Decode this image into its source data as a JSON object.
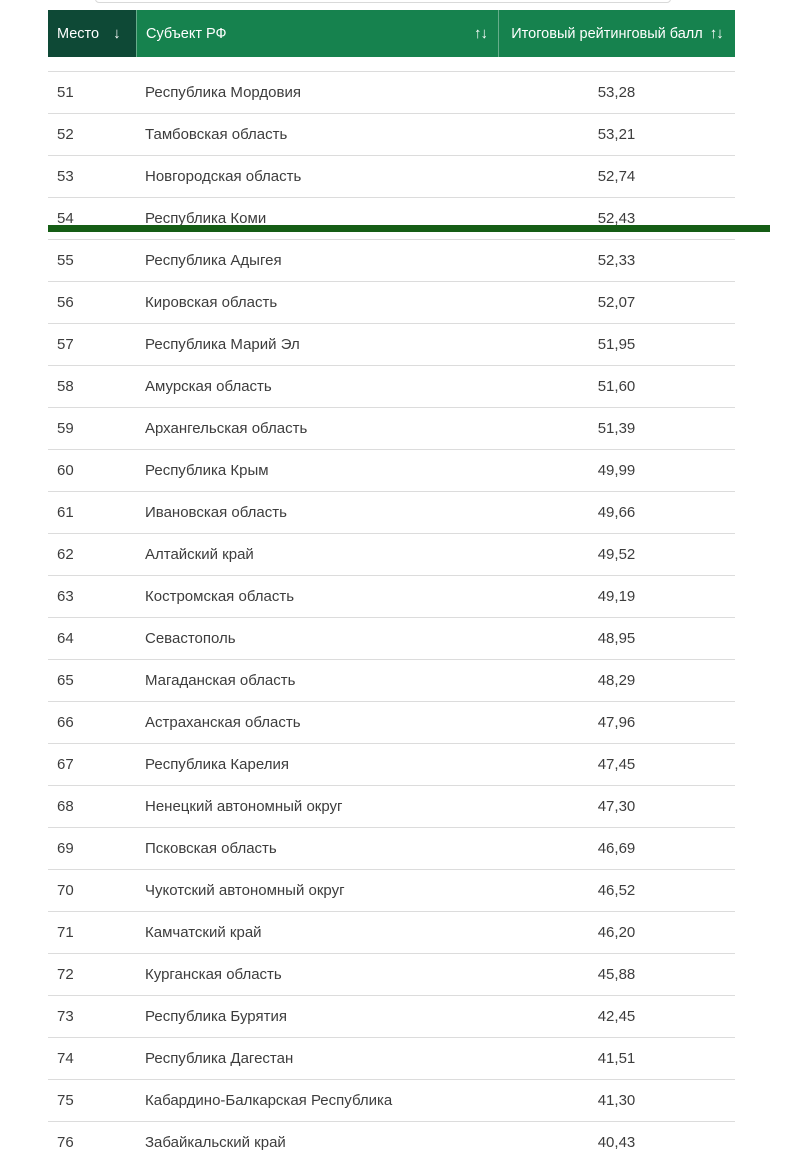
{
  "colors": {
    "header_green": "#16824e",
    "header_dark_green": "#0e4936",
    "divider_green": "#155d15",
    "row_separator": "#dcdcdc",
    "row_text": "#3d3d3d",
    "header_text": "#ffffff"
  },
  "icons": {
    "sort_down": "↓",
    "sort_both": "↑↓"
  },
  "table": {
    "columns": {
      "place": {
        "label": "Место"
      },
      "region": {
        "label": "Субъект РФ"
      },
      "score": {
        "label": "Итоговый рейтинговый балл"
      }
    },
    "divider_after_place": "54",
    "rows": [
      {
        "place": "51",
        "region": "Республика Мордовия",
        "score": "53,28"
      },
      {
        "place": "52",
        "region": "Тамбовская область",
        "score": "53,21"
      },
      {
        "place": "53",
        "region": "Новгородская область",
        "score": "52,74"
      },
      {
        "place": "54",
        "region": "Республика Коми",
        "score": "52,43"
      },
      {
        "place": "55",
        "region": "Республика Адыгея",
        "score": "52,33"
      },
      {
        "place": "56",
        "region": "Кировская область",
        "score": "52,07"
      },
      {
        "place": "57",
        "region": "Республика Марий Эл",
        "score": "51,95"
      },
      {
        "place": "58",
        "region": "Амурская область",
        "score": "51,60"
      },
      {
        "place": "59",
        "region": "Архангельская область",
        "score": "51,39"
      },
      {
        "place": "60",
        "region": "Республика Крым",
        "score": "49,99"
      },
      {
        "place": "61",
        "region": "Ивановская область",
        "score": "49,66"
      },
      {
        "place": "62",
        "region": "Алтайский край",
        "score": "49,52"
      },
      {
        "place": "63",
        "region": "Костромская область",
        "score": "49,19"
      },
      {
        "place": "64",
        "region": "Севастополь",
        "score": "48,95"
      },
      {
        "place": "65",
        "region": "Магаданская область",
        "score": "48,29"
      },
      {
        "place": "66",
        "region": "Астраханская область",
        "score": "47,96"
      },
      {
        "place": "67",
        "region": "Республика Карелия",
        "score": "47,45"
      },
      {
        "place": "68",
        "region": "Ненецкий автономный округ",
        "score": "47,30"
      },
      {
        "place": "69",
        "region": "Псковская область",
        "score": "46,69"
      },
      {
        "place": "70",
        "region": "Чукотский автономный округ",
        "score": "46,52"
      },
      {
        "place": "71",
        "region": "Камчатский край",
        "score": "46,20"
      },
      {
        "place": "72",
        "region": "Курганская область",
        "score": "45,88"
      },
      {
        "place": "73",
        "region": "Республика Бурятия",
        "score": "42,45"
      },
      {
        "place": "74",
        "region": "Республика Дагестан",
        "score": "41,51"
      },
      {
        "place": "75",
        "region": "Кабардино-Балкарская Республика",
        "score": "41,30"
      },
      {
        "place": "76",
        "region": "Забайкальский край",
        "score": "40,43"
      }
    ]
  }
}
